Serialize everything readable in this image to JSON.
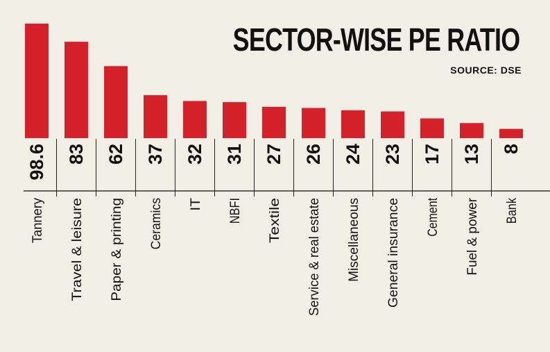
{
  "chart_data": {
    "type": "bar",
    "title": "SECTOR-WISE PE RATIO",
    "source": "SOURCE: DSE",
    "categories": [
      "Tannery",
      "Travel & leisure",
      "Paper & printing",
      "Ceramics",
      "IT",
      "NBFI",
      "Textile",
      "Service & real estate",
      "Miscellaneous",
      "General insurance",
      "Cement",
      "Fuel & power",
      "Bank"
    ],
    "values": [
      98.6,
      83,
      62,
      37,
      32,
      31,
      27,
      26,
      24,
      23,
      17,
      13,
      8
    ],
    "value_labels": [
      "98.6",
      "83",
      "62",
      "37",
      "32",
      "31",
      "27",
      "26",
      "24",
      "23",
      "17",
      "13",
      "8"
    ],
    "xlabel": "",
    "ylabel": "",
    "ylim": [
      0,
      98.6
    ],
    "grid": false,
    "bar_color": "#d4212a",
    "background": "#f1eee6"
  }
}
